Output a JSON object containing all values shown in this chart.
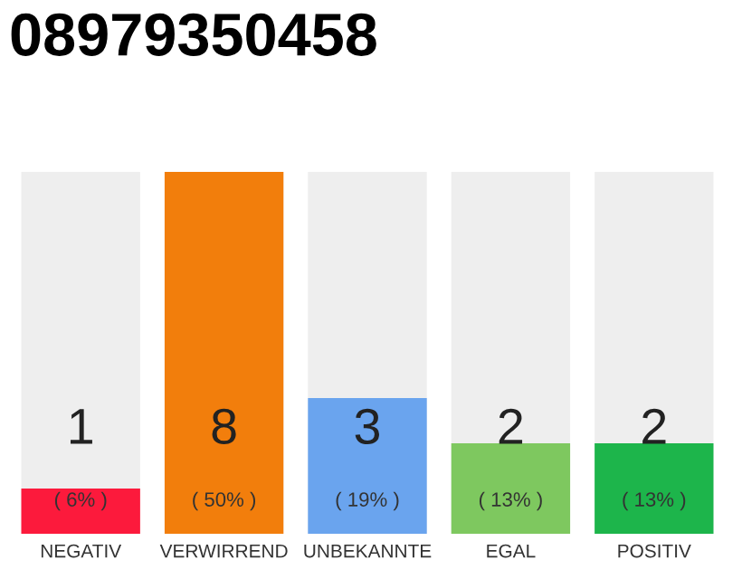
{
  "chart_data": {
    "type": "bar",
    "title": "08979350458",
    "data_labels": true,
    "categories": [
      "NEGATIV",
      "VERWIRREND",
      "UNBEKANNTE",
      "EGAL",
      "POSITIV"
    ],
    "values": [
      1,
      8,
      3,
      2,
      2
    ],
    "colors": [
      "#fc1a3c",
      "#f27e0c",
      "#6aa4ee",
      "#7ec85f",
      "#1db54b"
    ],
    "annotations": [
      "( 6% )",
      "( 50% )",
      "( 19% )",
      "( 13% )",
      "( 13% )"
    ],
    "grid": false,
    "legend": false
  }
}
